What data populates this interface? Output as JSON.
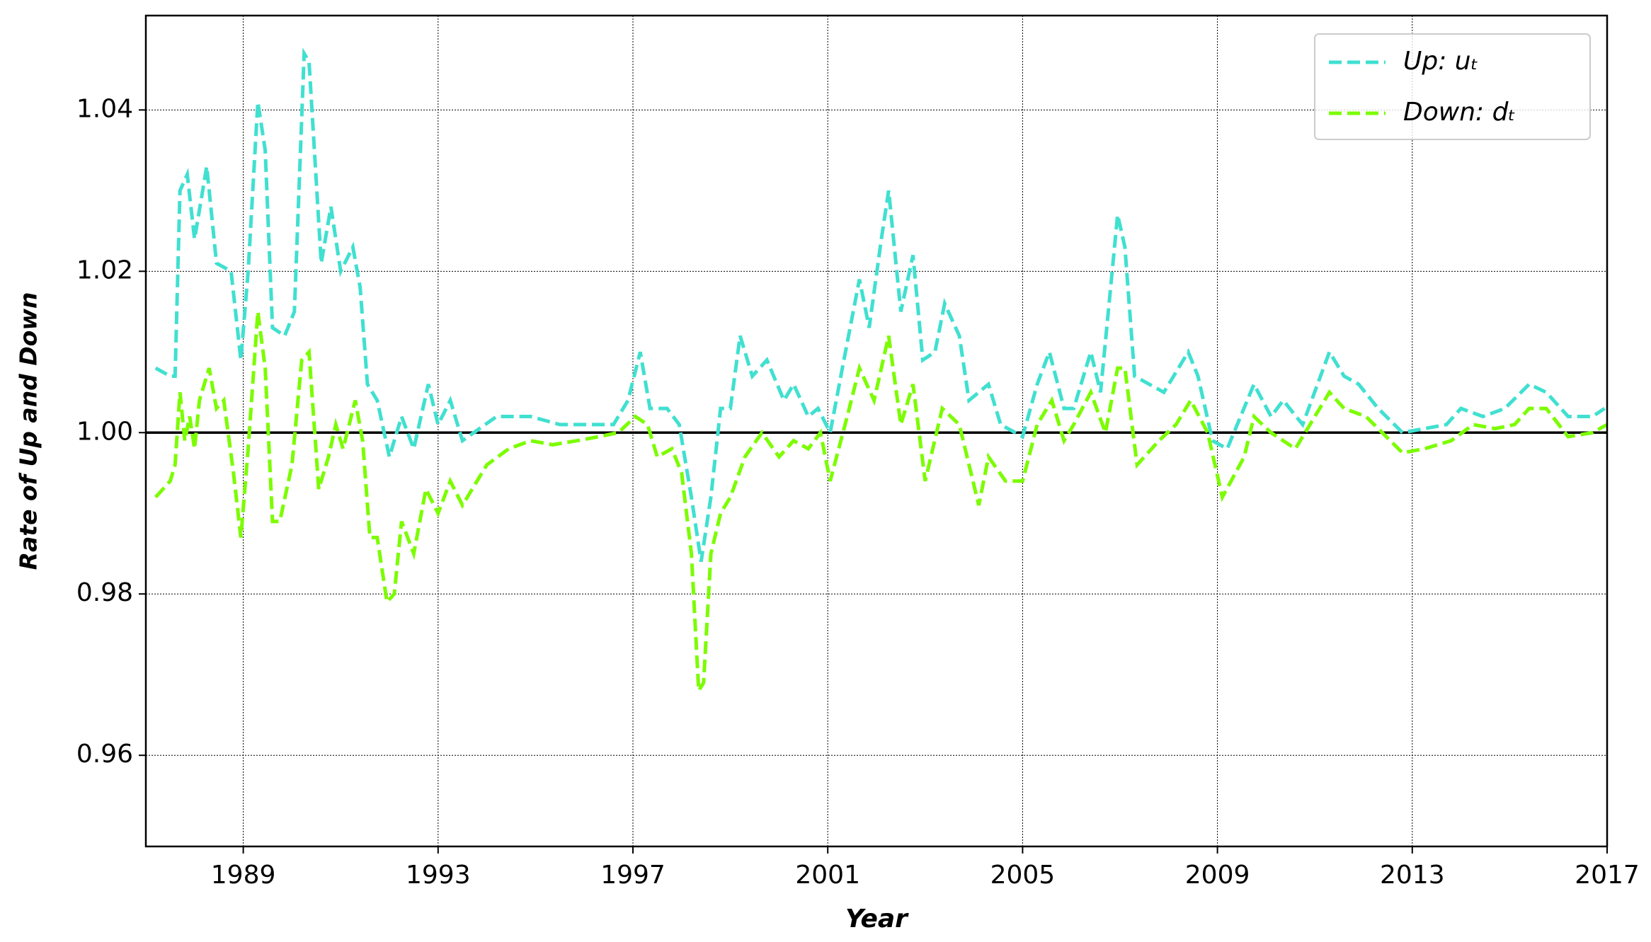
{
  "chart_data": {
    "type": "line",
    "x_label": "Year",
    "y_label": "Rate of Up and Down",
    "xlim": [
      1987,
      2017
    ],
    "ylim": [
      0.9487,
      1.0517
    ],
    "xticks": [
      1989,
      1993,
      1997,
      2001,
      2005,
      2009,
      2013,
      2017
    ],
    "yticks": [
      0.96,
      0.98,
      {
        "value": 1,
        "label": "1.00"
      },
      1.02,
      1.04
    ],
    "grid": true,
    "hline": 1,
    "legend": "upper right",
    "series": [
      {
        "name": "Up: uₜ",
        "color": "#40e0d0",
        "x": [
          1987.2,
          1987.5,
          1987.6,
          1987.7,
          1987.85,
          1988.0,
          1988.25,
          1988.45,
          1988.75,
          1988.95,
          1989.1,
          1989.3,
          1989.45,
          1989.6,
          1989.85,
          1990.05,
          1990.25,
          1990.35,
          1990.6,
          1990.8,
          1991.0,
          1991.25,
          1991.4,
          1991.55,
          1991.75,
          1992.0,
          1992.25,
          1992.5,
          1992.8,
          1993.0,
          1993.25,
          1993.5,
          1994.2,
          1994.9,
          1995.5,
          1996.2,
          1996.6,
          1996.9,
          1997.15,
          1997.35,
          1997.7,
          1997.95,
          1998.2,
          1998.4,
          1998.6,
          1998.8,
          1999.0,
          1999.2,
          1999.45,
          1999.75,
          2000.1,
          2000.3,
          2000.6,
          2000.8,
          2001.05,
          2001.3,
          2001.65,
          2001.85,
          2002.1,
          2002.25,
          2002.5,
          2002.75,
          2002.95,
          2003.2,
          2003.4,
          2003.7,
          2003.9,
          2004.3,
          2004.55,
          2005.0,
          2005.3,
          2005.55,
          2005.85,
          2006.05,
          2006.4,
          2006.6,
          2006.95,
          2007.1,
          2007.3,
          2007.9,
          2008.4,
          2008.6,
          2008.9,
          2009.2,
          2009.75,
          2010.1,
          2010.35,
          2010.75,
          2011.3,
          2011.6,
          2011.9,
          2012.3,
          2012.8,
          2013.25,
          2013.7,
          2014.0,
          2014.45,
          2014.9,
          2015.4,
          2015.75,
          2016.2,
          2016.7,
          2016.95
        ],
        "values": [
          1.008,
          1.007,
          1.007,
          1.03,
          1.032,
          1.024,
          1.033,
          1.021,
          1.02,
          1.009,
          1.02,
          1.041,
          1.035,
          1.013,
          1.012,
          1.015,
          1.047,
          1.046,
          1.021,
          1.028,
          1.02,
          1.023,
          1.018,
          1.006,
          1.004,
          0.997,
          1.002,
          0.998,
          1.006,
          1.001,
          1.004,
          0.999,
          1.002,
          1.002,
          1.001,
          1.001,
          1.001,
          1.004,
          1.01,
          1.003,
          1.003,
          1.001,
          0.992,
          0.984,
          0.992,
          1.003,
          1.003,
          1.012,
          1.007,
          1.009,
          1.004,
          1.006,
          1.002,
          1.003,
          1.0,
          1.008,
          1.019,
          1.013,
          1.024,
          1.03,
          1.015,
          1.022,
          1.009,
          1.01,
          1.016,
          1.012,
          1.004,
          1.006,
          1.001,
          0.9995,
          1.006,
          1.01,
          1.003,
          1.003,
          1.01,
          1.005,
          1.027,
          1.023,
          1.007,
          1.005,
          1.01,
          1.007,
          0.999,
          0.998,
          1.006,
          1.002,
          1.004,
          1.001,
          1.01,
          1.007,
          1.006,
          1.003,
          1.0,
          1.0005,
          1.001,
          1.003,
          1.002,
          1.003,
          1.006,
          1.005,
          1.002,
          1.002,
          1.003
        ]
      },
      {
        "name": "Down: dₜ",
        "color": "#7cfc00",
        "x": [
          1987.2,
          1987.5,
          1987.6,
          1987.7,
          1987.8,
          1987.9,
          1988.0,
          1988.1,
          1988.3,
          1988.45,
          1988.6,
          1988.8,
          1988.95,
          1989.1,
          1989.3,
          1989.45,
          1989.6,
          1989.75,
          1990.0,
          1990.2,
          1990.35,
          1990.55,
          1990.75,
          1990.9,
          1991.05,
          1991.3,
          1991.45,
          1991.6,
          1991.75,
          1991.95,
          1992.1,
          1992.25,
          1992.5,
          1992.75,
          1993.0,
          1993.25,
          1993.5,
          1994.0,
          1994.45,
          1994.9,
          1995.35,
          1995.85,
          1996.3,
          1996.7,
          1997.05,
          1997.3,
          1997.5,
          1997.8,
          1998.0,
          1998.2,
          1998.35,
          1998.45,
          1998.6,
          1998.8,
          1999.0,
          1999.3,
          1999.65,
          2000.0,
          2000.3,
          2000.6,
          2000.85,
          2001.05,
          2001.4,
          2001.65,
          2001.95,
          2002.25,
          2002.5,
          2002.75,
          2003.0,
          2003.35,
          2003.7,
          2004.1,
          2004.3,
          2004.65,
          2005.0,
          2005.3,
          2005.6,
          2005.85,
          2006.05,
          2006.4,
          2006.7,
          2006.95,
          2007.1,
          2007.35,
          2007.8,
          2008.15,
          2008.45,
          2008.8,
          2009.1,
          2009.55,
          2009.75,
          2010.1,
          2010.6,
          2011.3,
          2011.6,
          2012.05,
          2012.8,
          2013.25,
          2013.8,
          2014.25,
          2014.7,
          2015.1,
          2015.4,
          2015.75,
          2016.2,
          2016.7,
          2017.0
        ],
        "values": [
          0.992,
          0.994,
          0.996,
          1.005,
          0.999,
          1.002,
          0.998,
          1.004,
          1.008,
          1.003,
          1.004,
          0.995,
          0.987,
          0.998,
          1.015,
          1.008,
          0.989,
          0.989,
          0.996,
          1.009,
          1.01,
          0.993,
          0.997,
          1.001,
          0.998,
          1.004,
          0.999,
          0.987,
          0.987,
          0.979,
          0.98,
          0.989,
          0.985,
          0.993,
          0.99,
          0.994,
          0.991,
          0.996,
          0.998,
          0.999,
          0.9985,
          0.999,
          0.9995,
          1.0,
          1.002,
          1.001,
          0.997,
          0.998,
          0.995,
          0.985,
          0.968,
          0.969,
          0.985,
          0.99,
          0.992,
          0.997,
          1.0,
          0.997,
          0.999,
          0.998,
          1.0,
          0.994,
          1.002,
          1.008,
          1.004,
          1.012,
          1.001,
          1.006,
          0.994,
          1.003,
          1.001,
          0.991,
          0.997,
          0.994,
          0.994,
          1.001,
          1.004,
          0.999,
          1.001,
          1.005,
          1.0,
          1.008,
          1.008,
          0.996,
          0.999,
          1.001,
          1.004,
          1.0,
          0.992,
          0.997,
          1.002,
          1.0,
          0.998,
          1.005,
          1.003,
          1.002,
          0.9975,
          0.998,
          0.999,
          1.001,
          1.0005,
          1.001,
          1.003,
          1.003,
          0.9995,
          1.0,
          1.001
        ]
      }
    ]
  }
}
